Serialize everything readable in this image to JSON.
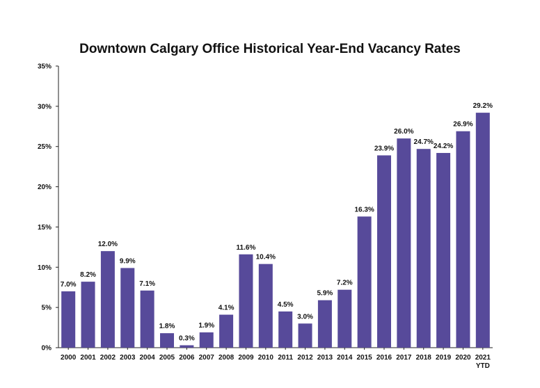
{
  "chart_data": {
    "type": "bar",
    "title": "Downtown Calgary Office Historical Year-End Vacancy Rates",
    "xlabel": "",
    "ylabel": "",
    "ylim": [
      0,
      35
    ],
    "y_ticks": [
      "0%",
      "5%",
      "10%",
      "15%",
      "20%",
      "25%",
      "30%",
      "35%"
    ],
    "y_tick_values": [
      0,
      5,
      10,
      15,
      20,
      25,
      30,
      35
    ],
    "categories": [
      "2000",
      "2001",
      "2002",
      "2003",
      "2004",
      "2005",
      "2006",
      "2007",
      "2008",
      "2009",
      "2010",
      "2011",
      "2012",
      "2013",
      "2014",
      "2015",
      "2016",
      "2017",
      "2018",
      "2019",
      "2020",
      "2021"
    ],
    "category_sublabels": [
      "",
      "",
      "",
      "",
      "",
      "",
      "",
      "",
      "",
      "",
      "",
      "",
      "",
      "",
      "",
      "",
      "",
      "",
      "",
      "",
      "",
      "YTD"
    ],
    "values": [
      7.0,
      8.2,
      12.0,
      9.9,
      7.1,
      1.8,
      0.3,
      1.9,
      4.1,
      11.6,
      10.4,
      4.5,
      3.0,
      5.9,
      7.2,
      16.3,
      23.9,
      26.0,
      24.7,
      24.2,
      26.9,
      29.2
    ],
    "value_labels": [
      "7.0%",
      "8.2%",
      "12.0%",
      "9.9%",
      "7.1%",
      "1.8%",
      "0.3%",
      "1.9%",
      "4.1%",
      "11.6%",
      "10.4%",
      "4.5%",
      "3.0%",
      "5.9%",
      "7.2%",
      "16.3%",
      "23.9%",
      "26.0%",
      "24.7%",
      "24.2%",
      "26.9%",
      "29.2%"
    ],
    "bar_color": "#574a9a",
    "grid": false,
    "legend": "none"
  }
}
